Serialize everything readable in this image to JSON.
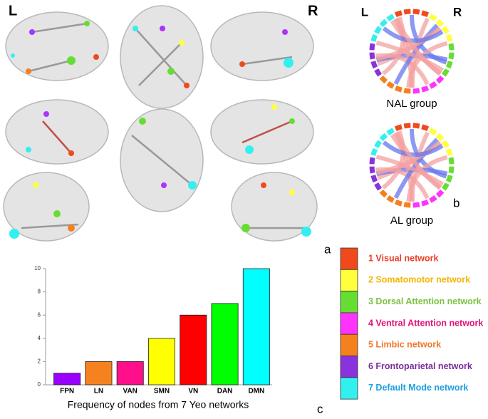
{
  "figure": {
    "left_label": "L",
    "right_label": "R",
    "panel_a": "a",
    "panel_b": "b",
    "panel_c": "c",
    "chord_left": "L",
    "chord_right": "R",
    "chord_top_caption": "NAL group",
    "chord_bottom_caption": "AL group"
  },
  "chart_data": {
    "type": "bar",
    "x_label": "Frequency of nodes from 7 Yeo networks",
    "categories": [
      "FPN",
      "LN",
      "VAN",
      "SMN",
      "VN",
      "DAN",
      "DMN"
    ],
    "values": [
      1,
      2,
      2,
      4,
      6,
      7,
      10
    ],
    "colors": [
      "#9900ff",
      "#f5821f",
      "#ff0f8a",
      "#ffff00",
      "#ff0000",
      "#00ff00",
      "#00ffff"
    ],
    "ylim": [
      0,
      10
    ],
    "yticks": [
      0,
      2,
      4,
      6,
      8,
      10
    ]
  },
  "legend": {
    "items": [
      {
        "label": "1 Visual network",
        "color": "#f04a1c",
        "text_color": "#ee3b24"
      },
      {
        "label": "2 Somatomotor network",
        "color": "#ffff3c",
        "text_color": "#f2b705"
      },
      {
        "label": "3 Dorsal Attention network",
        "color": "#66dd33",
        "text_color": "#7cc242"
      },
      {
        "label": "4 Ventral Attention network",
        "color": "#ff33ff",
        "text_color": "#e0147a"
      },
      {
        "label": "5 Limbic network",
        "color": "#f5801e",
        "text_color": "#f0782d"
      },
      {
        "label": "6 Frontoparietal network",
        "color": "#8833dd",
        "text_color": "#7b2c9c"
      },
      {
        "label": "7 Default Mode network",
        "color": "#33f0f0",
        "text_color": "#1ba0e0"
      }
    ]
  }
}
